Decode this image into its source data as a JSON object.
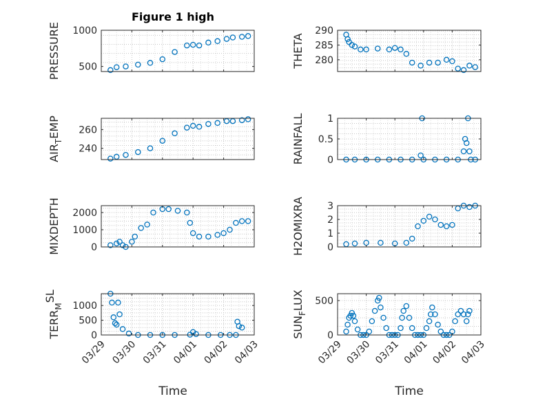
{
  "figure": {
    "title": "Figure 1 high",
    "xlabel": "Time",
    "marker_color": "#0072bd",
    "axis_color": "#262626",
    "grid_color": "#c4c4c4",
    "date_ticks": [
      "03/29",
      "03/30",
      "03/31",
      "04/01",
      "04/02",
      "04/03"
    ]
  },
  "chart_data": [
    {
      "type": "scatter",
      "title": "Figure 1 high",
      "ylabel": "PRESSURE",
      "ylabel_parts": [
        [
          "PRESSURE",
          "n"
        ]
      ],
      "xlim": [
        "03/29",
        "04/03"
      ],
      "ylim": [
        430,
        1000
      ],
      "yticks": [
        500,
        1000
      ],
      "grid": true,
      "date_labels": false,
      "series": [
        {
          "x": [
            0.3,
            0.5,
            0.8,
            1.2,
            1.6,
            2.0,
            2.4,
            2.8,
            3.0,
            3.2,
            3.5,
            3.8,
            4.1,
            4.3,
            4.6,
            4.8
          ],
          "y": [
            450,
            490,
            500,
            525,
            550,
            600,
            700,
            790,
            800,
            790,
            830,
            850,
            880,
            900,
            910,
            920
          ]
        }
      ]
    },
    {
      "type": "scatter",
      "ylabel": "THETA",
      "ylabel_parts": [
        [
          "THETA",
          "n"
        ]
      ],
      "xlim": [
        "03/29",
        "04/03"
      ],
      "ylim": [
        276,
        290
      ],
      "yticks": [
        280,
        285,
        290
      ],
      "grid": true,
      "date_labels": false,
      "series": [
        {
          "x": [
            0.3,
            0.35,
            0.4,
            0.5,
            0.6,
            0.8,
            1.0,
            1.4,
            1.8,
            2.0,
            2.2,
            2.4,
            2.6,
            2.9,
            3.2,
            3.5,
            3.8,
            4.0,
            4.2,
            4.4,
            4.6,
            4.8
          ],
          "y": [
            288.5,
            287,
            286,
            285,
            284.5,
            283.5,
            283.5,
            283.8,
            283.5,
            284,
            283.5,
            282,
            279,
            278,
            279,
            279,
            280,
            279.5,
            277,
            276.5,
            278,
            277.5
          ]
        }
      ]
    },
    {
      "type": "scatter",
      "ylabel": "AIR_TEMP",
      "ylabel_parts": [
        [
          "AIR",
          "n"
        ],
        [
          "T",
          "sub"
        ],
        [
          "EMP",
          "n"
        ]
      ],
      "xlim": [
        "03/29",
        "04/03"
      ],
      "ylim": [
        228,
        272
      ],
      "yticks": [
        240,
        260
      ],
      "grid": true,
      "date_labels": false,
      "series": [
        {
          "x": [
            0.3,
            0.5,
            0.8,
            1.2,
            1.6,
            2.0,
            2.4,
            2.8,
            3.0,
            3.2,
            3.5,
            3.8,
            4.1,
            4.3,
            4.6,
            4.8
          ],
          "y": [
            229,
            231,
            233,
            236,
            240,
            248,
            256,
            262,
            264,
            263,
            266,
            267,
            269,
            269,
            270,
            271
          ]
        }
      ]
    },
    {
      "type": "scatter",
      "ylabel": "RAINFALL",
      "ylabel_parts": [
        [
          "RAINFALL",
          "n"
        ]
      ],
      "xlim": [
        "03/29",
        "04/03"
      ],
      "ylim": [
        0,
        1
      ],
      "yticks": [
        0,
        0.5,
        1
      ],
      "grid": true,
      "date_labels": false,
      "series": [
        {
          "x": [
            0.3,
            0.6,
            1.0,
            1.4,
            1.8,
            2.2,
            2.6,
            2.9,
            2.95,
            3.0,
            3.4,
            3.8,
            4.2,
            4.4,
            4.45,
            4.5,
            4.55,
            4.6,
            4.65,
            4.8
          ],
          "y": [
            0,
            0,
            0,
            0,
            0,
            0,
            0,
            0.1,
            1.0,
            0,
            0,
            0,
            0,
            0.2,
            0.5,
            0.4,
            1.0,
            0.2,
            0,
            0
          ]
        }
      ]
    },
    {
      "type": "scatter",
      "ylabel": "MIXDEPTH",
      "ylabel_parts": [
        [
          "MIXDEPTH",
          "n"
        ]
      ],
      "xlim": [
        "03/29",
        "04/03"
      ],
      "ylim": [
        0,
        2400
      ],
      "yticks": [
        0,
        1000,
        2000
      ],
      "grid": true,
      "date_labels": false,
      "series": [
        {
          "x": [
            0.3,
            0.5,
            0.6,
            0.7,
            0.8,
            1.0,
            1.1,
            1.3,
            1.5,
            1.7,
            2.0,
            2.2,
            2.5,
            2.8,
            2.9,
            3.0,
            3.2,
            3.5,
            3.8,
            4.0,
            4.2,
            4.4,
            4.6,
            4.8
          ],
          "y": [
            100,
            200,
            300,
            100,
            0,
            300,
            600,
            1100,
            1300,
            2000,
            2200,
            2200,
            2100,
            2000,
            1400,
            800,
            600,
            600,
            700,
            800,
            1000,
            1400,
            1500,
            1500
          ]
        }
      ]
    },
    {
      "type": "scatter",
      "ylabel": "H2OMIXRA",
      "ylabel_parts": [
        [
          "H2OMIXRA",
          "n"
        ]
      ],
      "xlim": [
        "03/29",
        "04/03"
      ],
      "ylim": [
        0,
        3
      ],
      "yticks": [
        0,
        1,
        2,
        3
      ],
      "grid": true,
      "date_labels": false,
      "series": [
        {
          "x": [
            0.3,
            0.6,
            1.0,
            1.5,
            2.0,
            2.4,
            2.6,
            2.8,
            3.0,
            3.2,
            3.4,
            3.6,
            3.8,
            4.0,
            4.2,
            4.4,
            4.6,
            4.8
          ],
          "y": [
            0.2,
            0.25,
            0.3,
            0.3,
            0.25,
            0.3,
            0.6,
            1.5,
            1.9,
            2.2,
            2.0,
            1.6,
            1.5,
            1.6,
            2.8,
            3.0,
            2.9,
            3.0
          ]
        }
      ]
    },
    {
      "type": "scatter",
      "ylabel": "TERR_MSL",
      "ylabel_parts": [
        [
          "TERR",
          "n"
        ],
        [
          "M",
          "sub"
        ],
        [
          "SL",
          "sup"
        ]
      ],
      "xlim": [
        "03/29",
        "04/03"
      ],
      "ylim": [
        0,
        1400
      ],
      "yticks": [
        0,
        500,
        1000
      ],
      "grid": true,
      "date_labels": true,
      "series": [
        {
          "x": [
            0.3,
            0.35,
            0.4,
            0.45,
            0.5,
            0.55,
            0.6,
            0.7,
            0.9,
            1.2,
            1.6,
            2.0,
            2.4,
            2.9,
            3.0,
            3.1,
            3.5,
            3.9,
            4.2,
            4.4,
            4.45,
            4.5,
            4.6
          ],
          "y": [
            1400,
            1100,
            600,
            400,
            350,
            1100,
            700,
            200,
            50,
            0,
            0,
            0,
            0,
            10,
            100,
            30,
            0,
            0,
            0,
            0,
            450,
            300,
            250
          ]
        }
      ]
    },
    {
      "type": "scatter",
      "ylabel": "SUN_FLUX",
      "ylabel_parts": [
        [
          "SUN",
          "n"
        ],
        [
          "F",
          "sub"
        ],
        [
          "LUX",
          "n"
        ]
      ],
      "xlim": [
        "03/29",
        "04/03"
      ],
      "ylim": [
        0,
        600
      ],
      "yticks": [
        0,
        500
      ],
      "grid": true,
      "date_labels": true,
      "series": [
        {
          "x": [
            0.3,
            0.35,
            0.4,
            0.45,
            0.5,
            0.55,
            0.6,
            0.7,
            0.8,
            0.9,
            1.0,
            1.1,
            1.2,
            1.3,
            1.4,
            1.45,
            1.5,
            1.6,
            1.7,
            1.8,
            1.9,
            2.0,
            2.1,
            2.2,
            2.25,
            2.3,
            2.4,
            2.5,
            2.6,
            2.7,
            2.8,
            2.9,
            3.0,
            3.1,
            3.2,
            3.25,
            3.3,
            3.4,
            3.5,
            3.6,
            3.7,
            3.8,
            3.9,
            4.0,
            4.1,
            4.2,
            4.3,
            4.4,
            4.5,
            4.55,
            4.6
          ],
          "y": [
            50,
            150,
            250,
            280,
            320,
            280,
            200,
            80,
            0,
            0,
            0,
            50,
            200,
            350,
            500,
            540,
            400,
            250,
            100,
            0,
            0,
            0,
            0,
            100,
            250,
            350,
            420,
            250,
            100,
            0,
            0,
            0,
            0,
            100,
            200,
            300,
            400,
            300,
            150,
            50,
            0,
            0,
            0,
            50,
            200,
            300,
            350,
            300,
            200,
            300,
            350
          ]
        }
      ]
    }
  ]
}
